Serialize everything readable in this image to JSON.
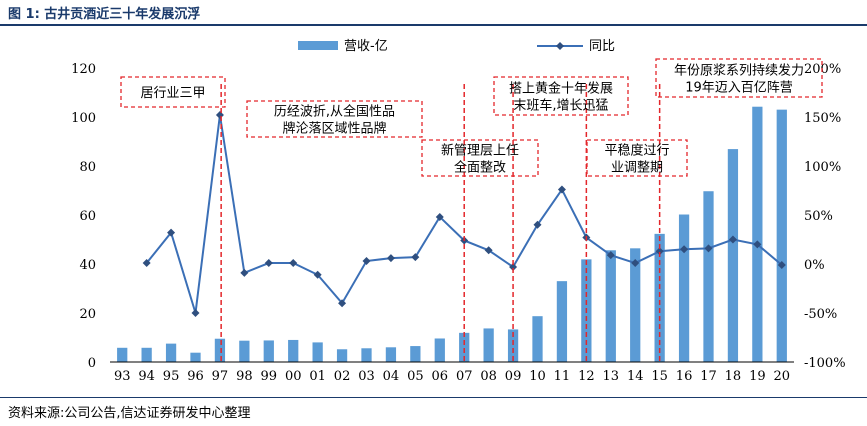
{
  "figure": {
    "title": "图 1: 古井贡酒近三十年发展沉浮",
    "source": "资料来源:公司公告,信达证券研发中心整理"
  },
  "chart_data": {
    "type": "bar+line",
    "categories": [
      "93",
      "94",
      "95",
      "96",
      "97",
      "98",
      "99",
      "00",
      "01",
      "02",
      "03",
      "04",
      "05",
      "06",
      "07",
      "08",
      "09",
      "10",
      "11",
      "12",
      "13",
      "14",
      "15",
      "16",
      "17",
      "18",
      "19",
      "20"
    ],
    "series": [
      {
        "name": "营收-亿",
        "type": "bar",
        "axis": "left",
        "color": "#5b9bd5",
        "values": [
          5.8,
          5.8,
          7.5,
          3.8,
          9.5,
          8.7,
          8.8,
          9.0,
          8.0,
          5.2,
          5.6,
          6.0,
          6.5,
          9.6,
          11.9,
          13.7,
          13.3,
          18.7,
          33.0,
          41.9,
          45.6,
          46.4,
          52.3,
          60.2,
          69.7,
          86.9,
          104.2,
          103.0
        ]
      },
      {
        "name": "同比",
        "type": "line",
        "axis": "right",
        "unit": "%",
        "color": "#3b6fb6",
        "values": [
          null,
          1,
          32,
          -50,
          152,
          -9,
          1,
          1,
          -11,
          -40,
          3,
          6,
          7,
          48,
          24,
          14,
          -3,
          40,
          76,
          27,
          9,
          1,
          13,
          15,
          16,
          25,
          20,
          -1
        ]
      }
    ],
    "y_left": {
      "min": 0,
      "max": 120,
      "ticks": [
        0,
        20,
        40,
        60,
        80,
        100,
        120
      ]
    },
    "y_right": {
      "min": -100,
      "max": 200,
      "ticks": [
        "-100%",
        "-50%",
        "0%",
        "50%",
        "100%",
        "150%",
        "200%"
      ]
    },
    "legend_position": "top",
    "phase_dividers_after": [
      "97",
      "07",
      "09",
      "12",
      "15"
    ],
    "annotations": [
      {
        "lines": [
          "居行业三甲"
        ]
      },
      {
        "lines": [
          "历经波折,从全国性品",
          "牌沦落区域性品牌"
        ]
      },
      {
        "lines": [
          "新管理层上任",
          "全面整改"
        ]
      },
      {
        "lines": [
          "搭上黄金十年发展",
          "末班车,增长迅猛"
        ]
      },
      {
        "lines": [
          "平稳度过行",
          "业调整期"
        ]
      },
      {
        "lines": [
          "年份原浆系列持续发力",
          "19年迈入百亿阵营"
        ]
      }
    ],
    "colors": {
      "bar": "#5b9bd5",
      "line": "#3b6fb6",
      "marker": "#2f4f7f",
      "divider": "#e3262b"
    }
  }
}
